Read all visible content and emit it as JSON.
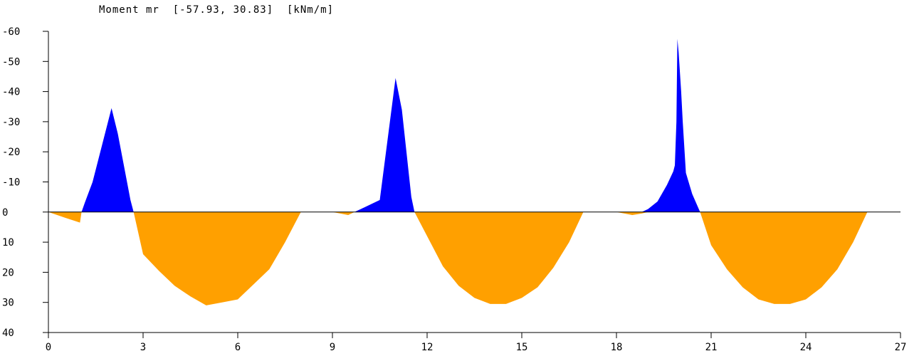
{
  "chart_data": {
    "type": "area",
    "title": "Moment mr  [-57.93, 30.83]  [kNm/m]",
    "xlabel": "",
    "ylabel": "",
    "xlim": [
      0,
      27
    ],
    "ylim": [
      -60,
      40
    ],
    "y_inverted": true,
    "x_ticks": [
      "0",
      "3",
      "6",
      "9",
      "12",
      "15",
      "18",
      "21",
      "24",
      "27"
    ],
    "y_ticks": [
      "-60",
      "-50",
      "-40",
      "-30",
      "-20",
      "-10",
      "0",
      "10",
      "20",
      "30",
      "40"
    ],
    "colors": {
      "negative": "#0000ff",
      "positive": "#ffa000",
      "axis": "#000000"
    },
    "series": [
      {
        "x": [
          0.0,
          0.5,
          1.0,
          1.05,
          1.15,
          1.4,
          2.0,
          2.2,
          2.6,
          2.7,
          3.0,
          3.5,
          4.0,
          4.5,
          5.0,
          5.5,
          6.0,
          6.5,
          7.0,
          7.5,
          8.0,
          8.1,
          9.0,
          9.5,
          9.7,
          9.8,
          10.0,
          10.5,
          11.0,
          11.2,
          11.5,
          11.6,
          12.0,
          12.5,
          13.0,
          13.5,
          14.0,
          14.5,
          15.0,
          15.5,
          16.0,
          16.5,
          16.95,
          18.0,
          18.5,
          18.8,
          19.0,
          19.3,
          19.6,
          19.8,
          19.85,
          19.9,
          19.93,
          19.97,
          20.05,
          20.1,
          20.2,
          20.4,
          20.65,
          21.0,
          21.5,
          22.0,
          22.5,
          23.0,
          23.5,
          24.0,
          24.5,
          25.0,
          25.5,
          25.95
        ],
        "values": [
          0,
          1.8,
          3.5,
          0,
          -3,
          -10,
          -34.5,
          -26,
          -4,
          0,
          14,
          19.5,
          24.5,
          28,
          31,
          30,
          29,
          24,
          19,
          10,
          0,
          0,
          0,
          1,
          0,
          -0.5,
          -1.5,
          -4,
          -44.5,
          -34,
          -5,
          0,
          8,
          18,
          24.5,
          28.5,
          30.5,
          30.5,
          28.5,
          25,
          18.5,
          10,
          0,
          0,
          1,
          0.5,
          -1,
          -3.5,
          -9,
          -13.5,
          -15.5,
          -30,
          -57.5,
          -53,
          -40,
          -30,
          -13,
          -6,
          0,
          11,
          19,
          25,
          29,
          30.5,
          30.5,
          29,
          25,
          19,
          10,
          0
        ]
      }
    ]
  }
}
